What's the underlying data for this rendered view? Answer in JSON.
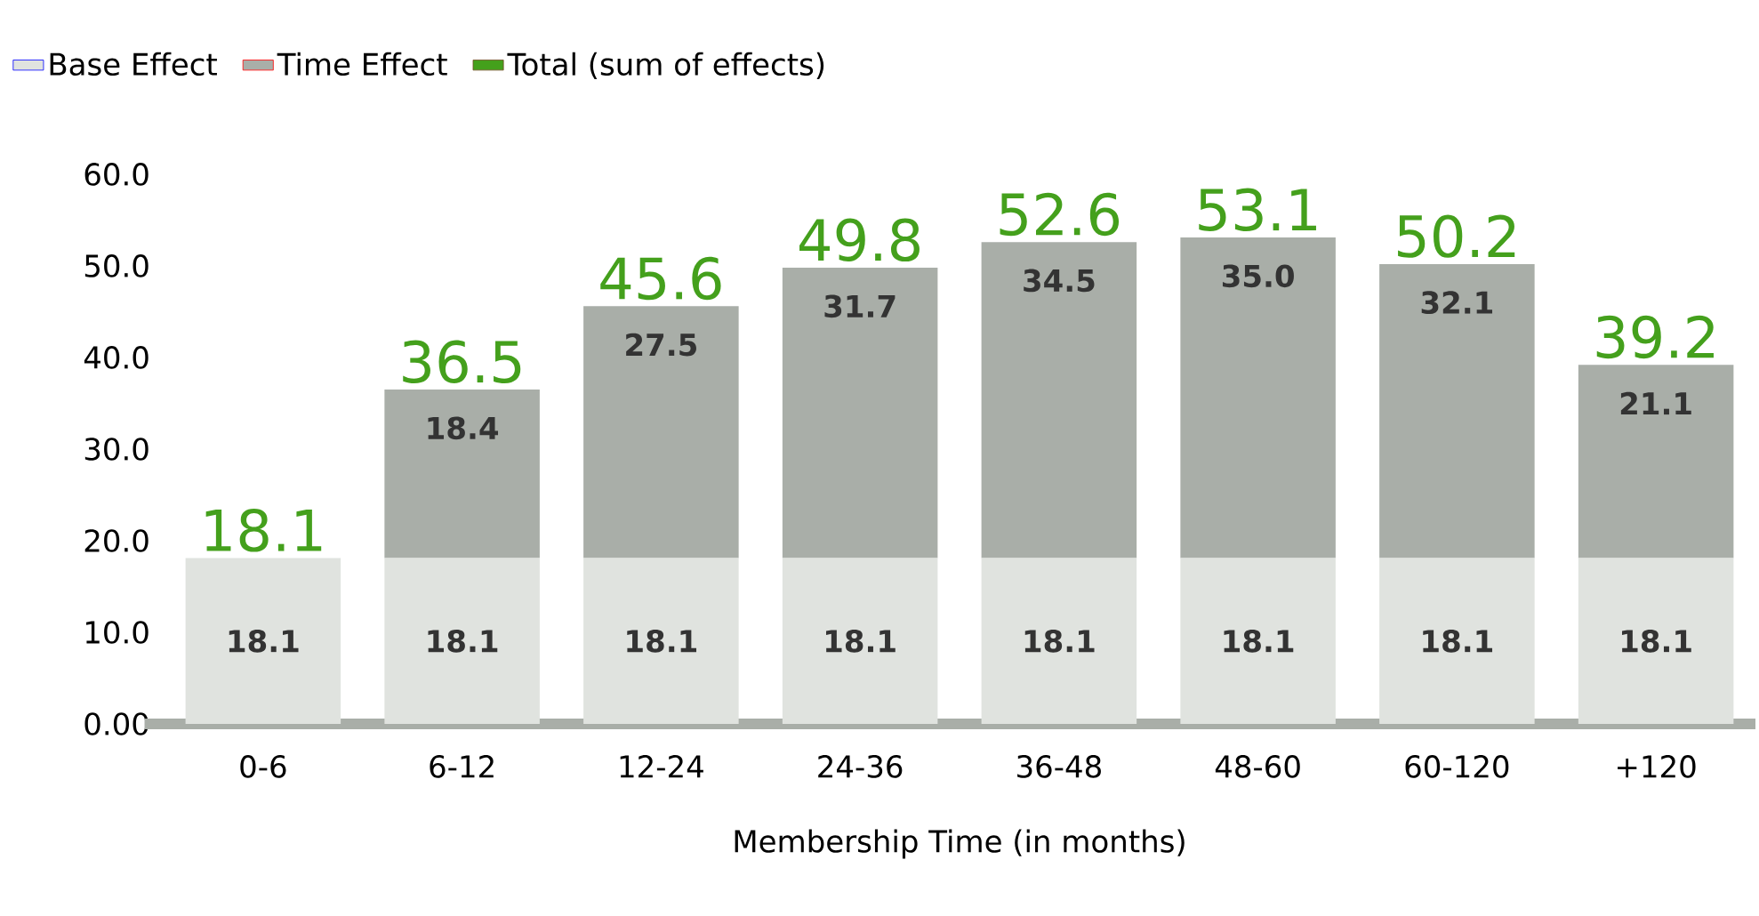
{
  "chart_data": {
    "type": "bar",
    "stacked": true,
    "xlabel": "Membership Time (in months)",
    "categories": [
      "0-6",
      "6-12",
      "12-24",
      "24-36",
      "36-48",
      "48-60",
      "60-120",
      "+120"
    ],
    "series": [
      {
        "name": "Base Effect",
        "color": "#e0e3df",
        "values": [
          18.1,
          18.1,
          18.1,
          18.1,
          18.1,
          18.1,
          18.1,
          18.1
        ],
        "value_labels": [
          "18.1",
          "18.1",
          "18.1",
          "18.1",
          "18.1",
          "18.1",
          "18.1",
          "18.1"
        ]
      },
      {
        "name": "Time Effect",
        "color": "#a9aea8",
        "values": [
          null,
          18.4,
          27.5,
          31.7,
          34.5,
          35.0,
          32.1,
          21.1
        ],
        "value_labels": [
          null,
          "18.4",
          "27.5",
          "31.7",
          "34.5",
          "35.0",
          "32.1",
          "21.1"
        ]
      },
      {
        "name": "Total (sum of effects)",
        "type": "bar",
        "color": "#44a01c",
        "values": [
          null,
          null,
          null,
          null,
          null,
          null,
          null,
          null
        ]
      }
    ],
    "totals": [
      "18.1",
      "36.5",
      "45.6",
      "49.8",
      "52.6",
      "53.1",
      "50.2",
      "39.2"
    ],
    "ylim": [
      0,
      60
    ],
    "yticks": [
      {
        "value": 0,
        "label": "0.00"
      },
      {
        "value": 10,
        "label": "10.0"
      },
      {
        "value": 20,
        "label": "20.0"
      },
      {
        "value": 30,
        "label": "30.0"
      },
      {
        "value": 40,
        "label": "40.0"
      },
      {
        "value": 50,
        "label": "50.0"
      },
      {
        "value": 60,
        "label": "60.0"
      }
    ],
    "legend": "top left"
  }
}
